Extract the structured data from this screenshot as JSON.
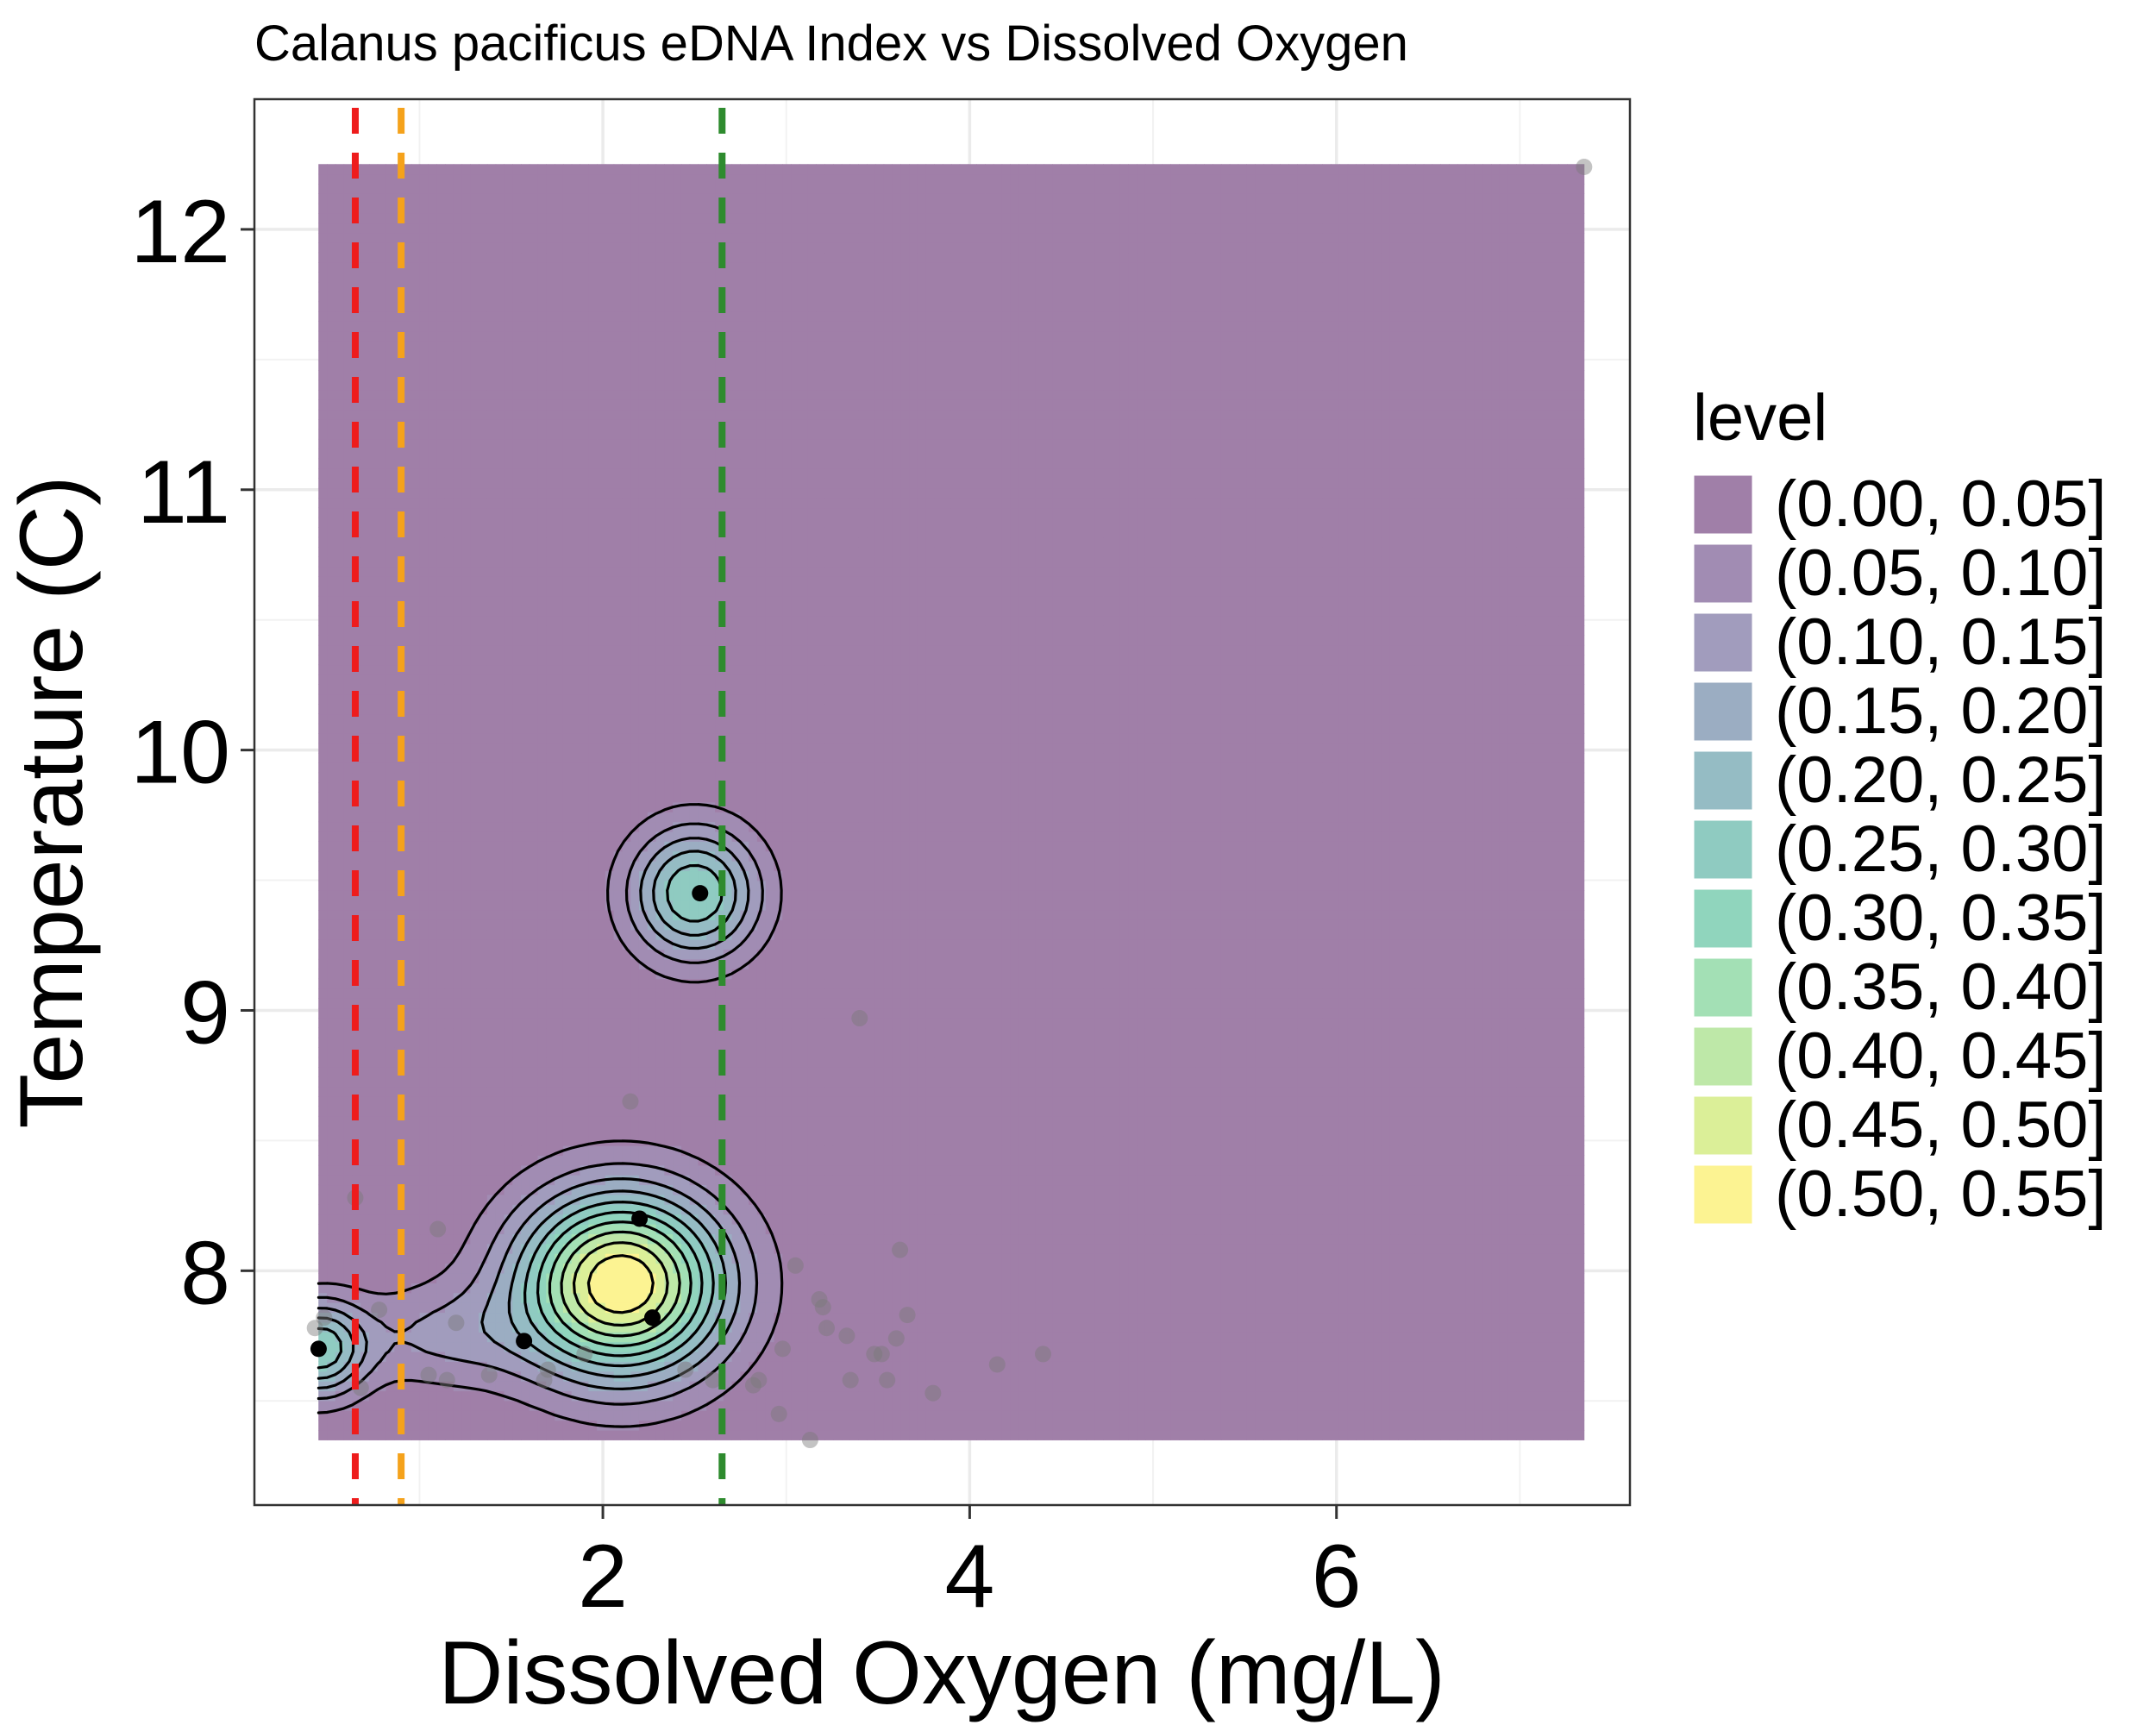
{
  "chart_data": {
    "type": "contour",
    "title": "Calanus pacificus eDNA Index vs Dissolved Oxygen",
    "xlabel": "Dissolved Oxygen (mg/L)",
    "ylabel": "Temperature (C)",
    "xlim": [
      0.1,
      7.6
    ],
    "ylim": [
      7.1,
      12.5
    ],
    "x_ticks": [
      2,
      4,
      6
    ],
    "x_tick_labels": [
      "2",
      "4",
      "6"
    ],
    "y_ticks": [
      8,
      9,
      10,
      11,
      12
    ],
    "y_tick_labels": [
      "8",
      "9",
      "10",
      "11",
      "12"
    ],
    "grid": true,
    "legend_position": "right",
    "legend": {
      "title": "level",
      "items": [
        {
          "label": "(0.00, 0.05]",
          "color": "#a07fa8"
        },
        {
          "label": "(0.05, 0.10]",
          "color": "#a18cb3"
        },
        {
          "label": "(0.10, 0.15]",
          "color": "#a19cbd"
        },
        {
          "label": "(0.15, 0.20]",
          "color": "#9badc2"
        },
        {
          "label": "(0.20, 0.25]",
          "color": "#95bcc4"
        },
        {
          "label": "(0.25, 0.30]",
          "color": "#8fcbc1"
        },
        {
          "label": "(0.30, 0.35]",
          "color": "#90d5bd"
        },
        {
          "label": "(0.35, 0.40]",
          "color": "#a3e0b5"
        },
        {
          "label": "(0.40, 0.45]",
          "color": "#bee8a8"
        },
        {
          "label": "(0.45, 0.50]",
          "color": "#dbef98"
        },
        {
          "label": "(0.50, 0.55]",
          "color": "#fcf392"
        }
      ]
    },
    "density_region": {
      "x": [
        0.45,
        7.35
      ],
      "y": [
        7.35,
        12.25
      ]
    },
    "vlines": [
      {
        "x": 0.65,
        "color": "#ee1c1c"
      },
      {
        "x": 0.9,
        "color": "#f5a21b"
      },
      {
        "x": 2.65,
        "color": "#2e8b2e"
      }
    ],
    "density_peaks": [
      {
        "x": 2.5,
        "y": 9.45,
        "level": 0.3
      },
      {
        "x": 2.1,
        "y": 7.95,
        "level": 0.55
      },
      {
        "x": 0.55,
        "y": 7.7,
        "level": 0.3
      }
    ],
    "points_present": [
      {
        "x": 0.45,
        "y": 7.7
      },
      {
        "x": 2.2,
        "y": 8.2
      },
      {
        "x": 2.27,
        "y": 7.82
      },
      {
        "x": 1.57,
        "y": 7.73
      },
      {
        "x": 2.53,
        "y": 9.45
      }
    ],
    "points_absent": [
      {
        "x": 7.35,
        "y": 12.24
      },
      {
        "x": 3.4,
        "y": 8.97
      },
      {
        "x": 2.15,
        "y": 8.65
      },
      {
        "x": 0.65,
        "y": 8.28
      },
      {
        "x": 1.1,
        "y": 8.16
      },
      {
        "x": 3.62,
        "y": 8.08
      },
      {
        "x": 3.05,
        "y": 8.02
      },
      {
        "x": 3.18,
        "y": 7.89
      },
      {
        "x": 3.2,
        "y": 7.86
      },
      {
        "x": 3.66,
        "y": 7.83
      },
      {
        "x": 0.78,
        "y": 7.85
      },
      {
        "x": 1.2,
        "y": 7.8
      },
      {
        "x": 0.48,
        "y": 7.82
      },
      {
        "x": 0.43,
        "y": 7.78
      },
      {
        "x": 3.22,
        "y": 7.78
      },
      {
        "x": 3.33,
        "y": 7.75
      },
      {
        "x": 3.6,
        "y": 7.74
      },
      {
        "x": 3.48,
        "y": 7.68
      },
      {
        "x": 3.52,
        "y": 7.68
      },
      {
        "x": 4.4,
        "y": 7.68
      },
      {
        "x": 4.15,
        "y": 7.64
      },
      {
        "x": 2.98,
        "y": 7.7
      },
      {
        "x": 1.9,
        "y": 7.68
      },
      {
        "x": 1.7,
        "y": 7.62
      },
      {
        "x": 1.05,
        "y": 7.6
      },
      {
        "x": 1.15,
        "y": 7.58
      },
      {
        "x": 2.85,
        "y": 7.58
      },
      {
        "x": 2.82,
        "y": 7.56
      },
      {
        "x": 0.68,
        "y": 7.55
      },
      {
        "x": 3.35,
        "y": 7.58
      },
      {
        "x": 3.55,
        "y": 7.58
      },
      {
        "x": 3.8,
        "y": 7.53
      },
      {
        "x": 2.96,
        "y": 7.45
      },
      {
        "x": 3.13,
        "y": 7.35
      },
      {
        "x": 1.68,
        "y": 7.58
      },
      {
        "x": 1.38,
        "y": 7.6
      },
      {
        "x": 2.45,
        "y": 7.62
      },
      {
        "x": 2.6,
        "y": 7.58
      }
    ]
  }
}
